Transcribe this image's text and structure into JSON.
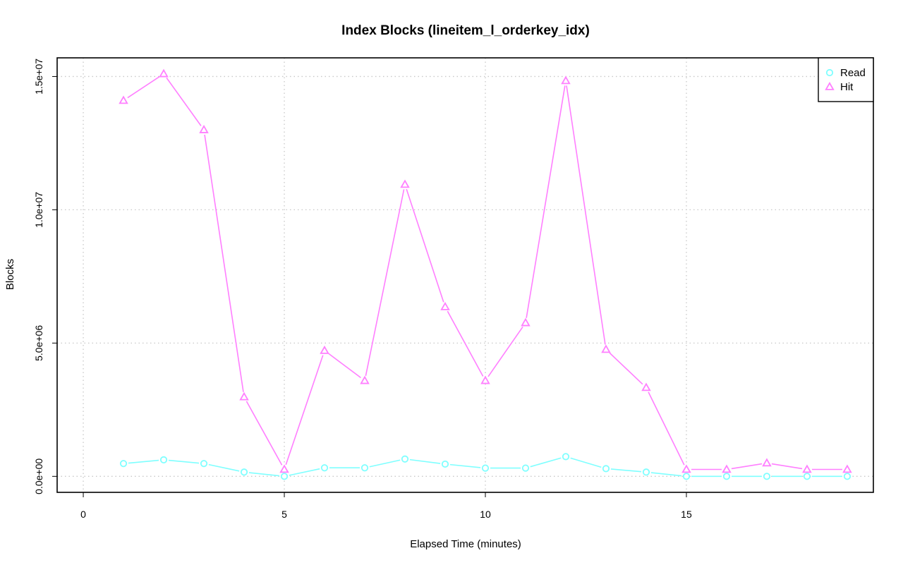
{
  "chart_data": {
    "type": "line",
    "title": "Index Blocks (lineitem_l_orderkey_idx)",
    "xlabel": "Elapsed Time (minutes)",
    "ylabel": "Blocks",
    "xlim": [
      -0.65,
      19.65
    ],
    "ylim": [
      -600000,
      15700000
    ],
    "x_ticks": [
      0,
      5,
      10,
      15
    ],
    "x_tick_labels": [
      "0",
      "5",
      "10",
      "15"
    ],
    "y_ticks": [
      0,
      5000000,
      10000000,
      15000000
    ],
    "y_tick_labels": [
      "0.0e+00",
      "5.0e+06",
      "1.0e+07",
      "1.5e+07"
    ],
    "grid": true,
    "legend_position": "top-right",
    "x": [
      1,
      2,
      3,
      4,
      5,
      6,
      7,
      8,
      9,
      10,
      11,
      12,
      13,
      14,
      15,
      16,
      17,
      18,
      19
    ],
    "series": [
      {
        "name": "Read",
        "color": "#7fffff",
        "marker": "circle",
        "values": [
          480000,
          620000,
          480000,
          160000,
          0,
          320000,
          320000,
          650000,
          460000,
          310000,
          310000,
          740000,
          290000,
          160000,
          0,
          0,
          0,
          0,
          0
        ]
      },
      {
        "name": "Hit",
        "color": "#ff7fff",
        "marker": "triangle",
        "values": [
          14100000,
          15100000,
          13000000,
          2980000,
          260000,
          4720000,
          3590000,
          10950000,
          6360000,
          3590000,
          5760000,
          14840000,
          4760000,
          3330000,
          260000,
          260000,
          500000,
          260000,
          260000
        ]
      }
    ]
  }
}
